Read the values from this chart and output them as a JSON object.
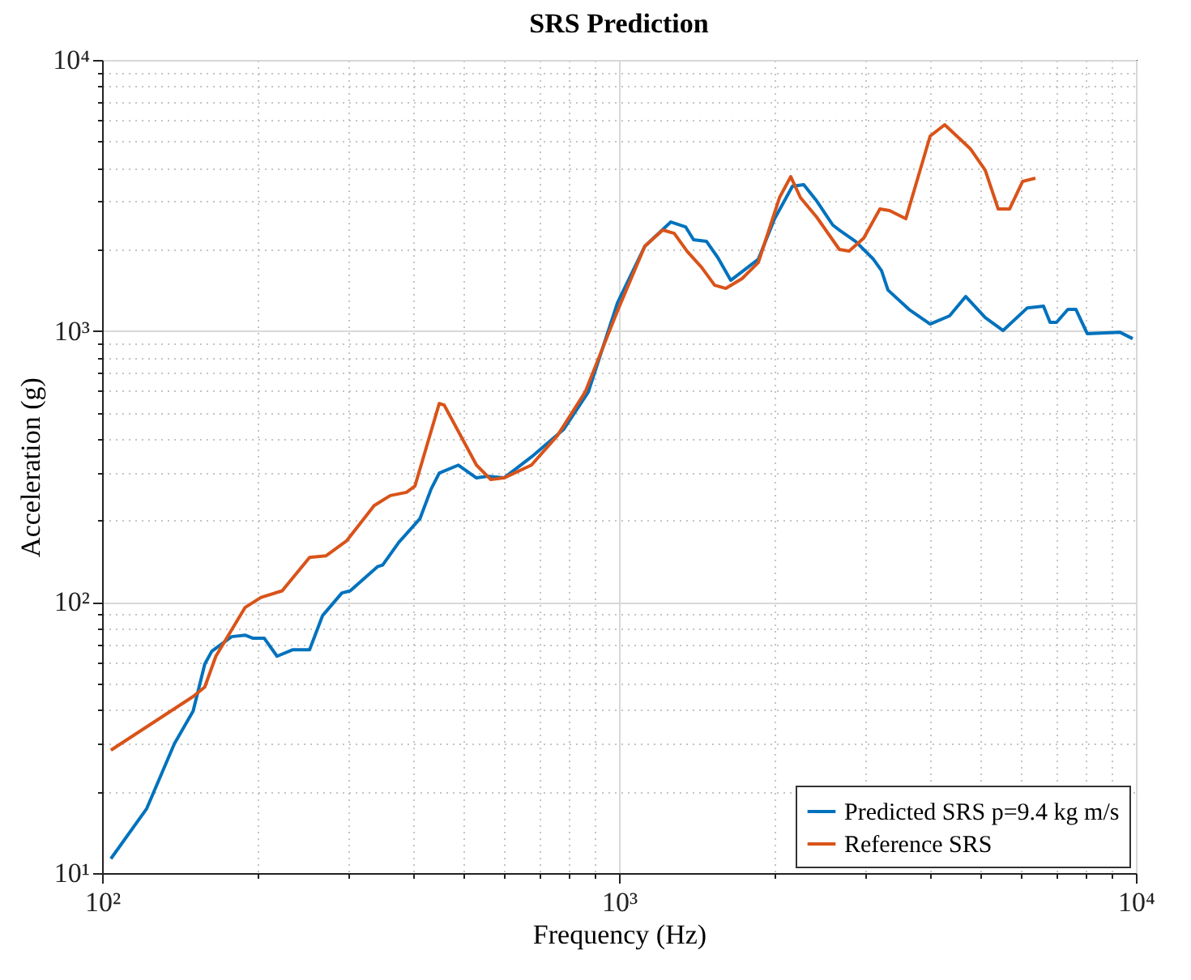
{
  "chart_data": {
    "type": "line",
    "title": "SRS Prediction",
    "xlabel": "Frequency (Hz)",
    "ylabel": "Acceleration (g)",
    "log": "xy",
    "grid": true,
    "legend": "bottom right",
    "line_style": "solid",
    "marker": "none",
    "xlim": [
      100,
      10000
    ],
    "xticks": [
      {
        "value": 100,
        "label": "10²"
      },
      {
        "value": 1000,
        "label": "10³"
      },
      {
        "value": 10000,
        "label": "10⁴"
      }
    ],
    "ylim": [
      10,
      10000
    ],
    "yticks": [
      {
        "value": 10,
        "label": "10¹"
      },
      {
        "value": 100,
        "label": "10²"
      },
      {
        "value": 1000,
        "label": "10³"
      },
      {
        "value": 10000,
        "label": "10⁴"
      }
    ],
    "series": [
      {
        "name": "Predicted SRS p=9.4 kg m/s",
        "color": "#0072bd",
        "x": [
          104,
          122,
          138,
          150,
          158,
          163,
          178,
          189,
          196,
          206,
          218,
          234,
          252,
          267,
          291,
          302,
          341,
          349,
          375,
          412,
          433,
          449,
          489,
          530,
          557,
          599,
          677,
          782,
          872,
          993,
          1122,
          1260,
          1345,
          1394,
          1477,
          1553,
          1645,
          1860,
          2000,
          2165,
          2277,
          2412,
          2593,
          2669,
          2869,
          3106,
          3220,
          3314,
          3640,
          3999,
          4360,
          4686,
          5111,
          5534,
          6166,
          6626,
          6822,
          7022,
          7386,
          7656,
          8054,
          9306,
          9856
        ],
        "values": [
          11.3,
          17.3,
          30,
          39.6,
          59,
          65.8,
          74.5,
          75.5,
          73.5,
          73.5,
          63.1,
          66.7,
          66.7,
          89.1,
          108,
          110,
          135,
          137,
          166,
          203,
          261,
          299,
          320,
          287,
          291,
          287,
          343,
          434,
          595,
          1269,
          2054,
          2525,
          2423,
          2170,
          2140,
          1866,
          1538,
          1840,
          2595,
          3418,
          3465,
          3020,
          2457,
          2357,
          2140,
          1840,
          1671,
          1416,
          1201,
          1061,
          1137,
          1341,
          1121,
          1004,
          1217,
          1234,
          1076,
          1076,
          1201,
          1201,
          977,
          990,
          937
        ]
      },
      {
        "name": "Reference SRS",
        "color": "#d95319",
        "x": [
          104,
          150,
          158,
          166,
          189,
          203,
          223,
          252,
          271,
          297,
          336,
          361,
          388,
          403,
          449,
          459,
          530,
          565,
          599,
          677,
          760,
          860,
          993,
          1122,
          1215,
          1279,
          1354,
          1445,
          1531,
          1610,
          1730,
          1860,
          2044,
          2149,
          2244,
          2412,
          2669,
          2787,
          2975,
          3197,
          3338,
          3588,
          3999,
          4267,
          4789,
          5111,
          5415,
          5696,
          6036,
          6391
        ],
        "values": [
          28.4,
          44.8,
          48.6,
          63.1,
          95.4,
          104,
          110,
          146,
          148,
          168,
          227,
          247,
          254,
          268,
          540,
          533,
          320,
          283,
          287,
          320,
          411,
          595,
          1184,
          2054,
          2357,
          2293,
          1971,
          1717,
          1476,
          1436,
          1560,
          1789,
          3104,
          3711,
          3104,
          2632,
          1999,
          1971,
          2200,
          2819,
          2781,
          2595,
          5237,
          5767,
          4691,
          3922,
          2819,
          2819,
          3562,
          3662
        ]
      }
    ]
  }
}
